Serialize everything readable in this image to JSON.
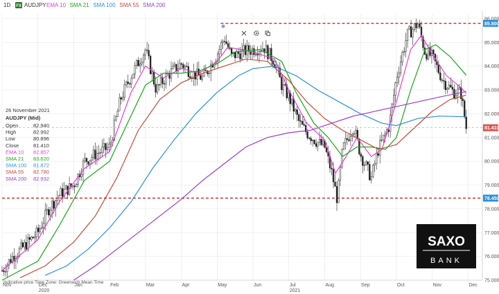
{
  "toolbar": {
    "timeframe": "1D",
    "fx_badge": "FX",
    "symbol": "AUDJPY",
    "indicators": [
      {
        "label": "EMA 10",
        "color": "#e040d0"
      },
      {
        "label": "SMA 21",
        "color": "#1aa51a"
      },
      {
        "label": "SMA 100",
        "color": "#2b8fd9"
      },
      {
        "label": "SMA 55",
        "color": "#c44a3a"
      },
      {
        "label": "SMA 200",
        "color": "#9b3ccf"
      }
    ],
    "icons": [
      "close-icon",
      "gear-icon",
      "copy-icon"
    ]
  },
  "info_panel": {
    "date": "26 November 2021",
    "title": "AUDJPY (Mid)",
    "rows": [
      {
        "label": "Open",
        "value": "82.940",
        "color": "#333333"
      },
      {
        "label": "High",
        "value": "82.992",
        "color": "#333333"
      },
      {
        "label": "Low",
        "value": "80.896",
        "color": "#333333"
      },
      {
        "label": "Close",
        "value": "81.410",
        "color": "#333333"
      },
      {
        "label": "EMA 10",
        "value": "82.857",
        "color": "#e040d0"
      },
      {
        "label": "SMA 21",
        "value": "83.620",
        "color": "#1aa51a"
      },
      {
        "label": "SMA 100",
        "value": "81.872",
        "color": "#2b8fd9"
      },
      {
        "label": "SMA 55",
        "value": "82.780",
        "color": "#c44a3a"
      },
      {
        "label": "SMA 200",
        "value": "82.932",
        "color": "#9b3ccf"
      }
    ]
  },
  "footer_note": "Indicative price   Time Zone: Greenwich Mean Time",
  "logo": {
    "line1": "SAXO",
    "line2": "BANK"
  },
  "chart_data": {
    "type": "candlestick",
    "instrument": "AUDJPY",
    "ylim": [
      75.0,
      86.2
    ],
    "y_ticks": [
      "75.000",
      "76.000",
      "77.000",
      "78.000",
      "79.000",
      "80.000",
      "81.000",
      "82.000",
      "83.000",
      "84.000",
      "85.000",
      "86.000"
    ],
    "x_ticks": [
      {
        "label": "Nov",
        "sub": "",
        "t": 0
      },
      {
        "label": "Dec",
        "sub": "2020",
        "t": 1
      },
      {
        "label": "Jan",
        "sub": "",
        "t": 2
      },
      {
        "label": "Feb",
        "sub": "",
        "t": 3
      },
      {
        "label": "Mar",
        "sub": "",
        "t": 4
      },
      {
        "label": "Apr",
        "sub": "",
        "t": 5
      },
      {
        "label": "May",
        "sub": "",
        "t": 6
      },
      {
        "label": "Jun",
        "sub": "",
        "t": 7
      },
      {
        "label": "Jul",
        "sub": "2021",
        "t": 8
      },
      {
        "label": "Aug",
        "sub": "",
        "t": 9
      },
      {
        "label": "Sep",
        "sub": "",
        "t": 10
      },
      {
        "label": "Oct",
        "sub": "",
        "t": 11
      },
      {
        "label": "Nov",
        "sub": "",
        "t": 12
      },
      {
        "label": "Dec",
        "sub": "",
        "t": 13
      }
    ],
    "price_path": [
      [
        0,
        75.4
      ],
      [
        0.3,
        76.0
      ],
      [
        0.6,
        76.4
      ],
      [
        1.0,
        77.0
      ],
      [
        1.3,
        78.0
      ],
      [
        1.6,
        78.6
      ],
      [
        2.0,
        79.0
      ],
      [
        2.3,
        80.0
      ],
      [
        2.6,
        80.3
      ],
      [
        3.0,
        80.6
      ],
      [
        3.3,
        82.6
      ],
      [
        3.6,
        83.6
      ],
      [
        4.0,
        84.7
      ],
      [
        4.3,
        83.0
      ],
      [
        4.6,
        83.6
      ],
      [
        5.0,
        84.1
      ],
      [
        5.3,
        83.7
      ],
      [
        5.6,
        83.5
      ],
      [
        6.0,
        84.5
      ],
      [
        6.2,
        85.2
      ],
      [
        6.4,
        84.4
      ],
      [
        6.7,
        84.6
      ],
      [
        7.0,
        84.7
      ],
      [
        7.3,
        84.8
      ],
      [
        7.6,
        84.2
      ],
      [
        7.8,
        83.2
      ],
      [
        8.0,
        82.7
      ],
      [
        8.3,
        81.6
      ],
      [
        8.5,
        81.2
      ],
      [
        8.8,
        80.8
      ],
      [
        9.0,
        80.6
      ],
      [
        9.2,
        79.5
      ],
      [
        9.35,
        78.4
      ],
      [
        9.5,
        80.5
      ],
      [
        9.8,
        81.5
      ],
      [
        10.0,
        80.3
      ],
      [
        10.3,
        79.3
      ],
      [
        10.5,
        80.5
      ],
      [
        10.8,
        81.5
      ],
      [
        11.0,
        83.5
      ],
      [
        11.3,
        85.3
      ],
      [
        11.6,
        85.8
      ],
      [
        11.8,
        84.6
      ],
      [
        12.0,
        84.4
      ],
      [
        12.3,
        83.4
      ],
      [
        12.6,
        82.9
      ],
      [
        12.8,
        82.9
      ],
      [
        12.95,
        81.41
      ]
    ],
    "series": [
      {
        "name": "EMA 10",
        "color": "#e040d0",
        "points": [
          [
            0,
            75.4
          ],
          [
            1.0,
            76.7
          ],
          [
            1.6,
            78.3
          ],
          [
            2.3,
            79.7
          ],
          [
            3.0,
            80.4
          ],
          [
            3.6,
            82.9
          ],
          [
            4.0,
            84.0
          ],
          [
            4.5,
            83.5
          ],
          [
            5.0,
            83.9
          ],
          [
            5.5,
            83.7
          ],
          [
            6.0,
            84.2
          ],
          [
            6.3,
            84.8
          ],
          [
            7.0,
            84.6
          ],
          [
            7.6,
            84.3
          ],
          [
            8.0,
            83.0
          ],
          [
            8.5,
            81.6
          ],
          [
            9.0,
            80.9
          ],
          [
            9.3,
            79.5
          ],
          [
            9.6,
            80.2
          ],
          [
            9.9,
            81.0
          ],
          [
            10.3,
            80.2
          ],
          [
            10.6,
            80.5
          ],
          [
            11.0,
            82.5
          ],
          [
            11.4,
            84.7
          ],
          [
            11.7,
            85.3
          ],
          [
            12.0,
            84.5
          ],
          [
            12.4,
            83.6
          ],
          [
            12.8,
            83.1
          ],
          [
            12.95,
            82.857
          ]
        ]
      },
      {
        "name": "SMA 21",
        "color": "#1aa51a",
        "points": [
          [
            0,
            75.0
          ],
          [
            1.0,
            75.8
          ],
          [
            1.6,
            77.3
          ],
          [
            2.3,
            79.2
          ],
          [
            3.0,
            80.0
          ],
          [
            3.5,
            81.6
          ],
          [
            4.0,
            83.2
          ],
          [
            4.5,
            83.7
          ],
          [
            5.0,
            83.7
          ],
          [
            5.5,
            83.8
          ],
          [
            6.0,
            84.1
          ],
          [
            6.5,
            84.6
          ],
          [
            7.2,
            84.7
          ],
          [
            7.8,
            84.2
          ],
          [
            8.2,
            82.9
          ],
          [
            8.7,
            81.6
          ],
          [
            9.1,
            81.0
          ],
          [
            9.5,
            80.2
          ],
          [
            9.9,
            80.6
          ],
          [
            10.3,
            80.6
          ],
          [
            10.7,
            80.5
          ],
          [
            11.0,
            81.0
          ],
          [
            11.4,
            83.0
          ],
          [
            11.8,
            84.7
          ],
          [
            12.1,
            84.9
          ],
          [
            12.5,
            84.4
          ],
          [
            12.95,
            83.62
          ]
        ]
      },
      {
        "name": "SMA 55",
        "color": "#c44a3a",
        "points": [
          [
            0.5,
            75.1
          ],
          [
            1.2,
            75.6
          ],
          [
            2.0,
            76.6
          ],
          [
            2.6,
            77.7
          ],
          [
            3.2,
            79.3
          ],
          [
            3.8,
            81.3
          ],
          [
            4.4,
            82.6
          ],
          [
            5.0,
            83.3
          ],
          [
            5.6,
            83.7
          ],
          [
            6.2,
            84.0
          ],
          [
            6.8,
            84.3
          ],
          [
            7.4,
            84.2
          ],
          [
            8.0,
            83.4
          ],
          [
            8.5,
            82.5
          ],
          [
            9.0,
            81.8
          ],
          [
            9.5,
            81.3
          ],
          [
            10.0,
            80.9
          ],
          [
            10.5,
            80.5
          ],
          [
            11.0,
            80.7
          ],
          [
            11.5,
            81.4
          ],
          [
            12.0,
            82.1
          ],
          [
            12.5,
            82.6
          ],
          [
            12.95,
            82.78
          ]
        ]
      },
      {
        "name": "SMA 100",
        "color": "#2b8fd9",
        "points": [
          [
            1.2,
            75.2
          ],
          [
            1.8,
            75.6
          ],
          [
            2.4,
            76.3
          ],
          [
            3.0,
            77.2
          ],
          [
            3.6,
            78.3
          ],
          [
            4.2,
            79.7
          ],
          [
            4.8,
            80.9
          ],
          [
            5.4,
            82.0
          ],
          [
            6.0,
            82.9
          ],
          [
            6.6,
            83.6
          ],
          [
            7.0,
            83.9
          ],
          [
            7.6,
            84.0
          ],
          [
            8.2,
            83.6
          ],
          [
            8.8,
            83.0
          ],
          [
            9.4,
            82.5
          ],
          [
            10.0,
            82.0
          ],
          [
            10.6,
            81.6
          ],
          [
            11.0,
            81.5
          ],
          [
            11.6,
            81.8
          ],
          [
            12.2,
            81.9
          ],
          [
            12.95,
            81.872
          ]
        ]
      },
      {
        "name": "SMA 200",
        "color": "#9b3ccf",
        "points": [
          [
            2.0,
            75.0
          ],
          [
            2.6,
            75.6
          ],
          [
            3.2,
            76.3
          ],
          [
            3.8,
            77.0
          ],
          [
            4.4,
            77.7
          ],
          [
            5.0,
            78.4
          ],
          [
            5.6,
            79.2
          ],
          [
            6.2,
            79.9
          ],
          [
            6.8,
            80.6
          ],
          [
            7.4,
            81.0
          ],
          [
            8.0,
            81.2
          ],
          [
            8.6,
            81.3
          ],
          [
            9.2,
            81.6
          ],
          [
            9.8,
            81.9
          ],
          [
            10.4,
            82.1
          ],
          [
            11.0,
            82.3
          ],
          [
            11.6,
            82.5
          ],
          [
            12.2,
            82.7
          ],
          [
            12.95,
            82.932
          ]
        ]
      }
    ],
    "horizontal_lines": [
      {
        "value": 85.8,
        "label": "85.800",
        "style": "dashed",
        "color": "#c01818",
        "start_t": 6.1
      },
      {
        "value": 81.41,
        "label": "81.410",
        "style": "dashed-thin",
        "color": "#e8a0a0",
        "start_t": 0
      },
      {
        "value": 78.45,
        "label": "78.450",
        "style": "dashed",
        "color": "#c01818",
        "start_t": 0
      }
    ]
  }
}
